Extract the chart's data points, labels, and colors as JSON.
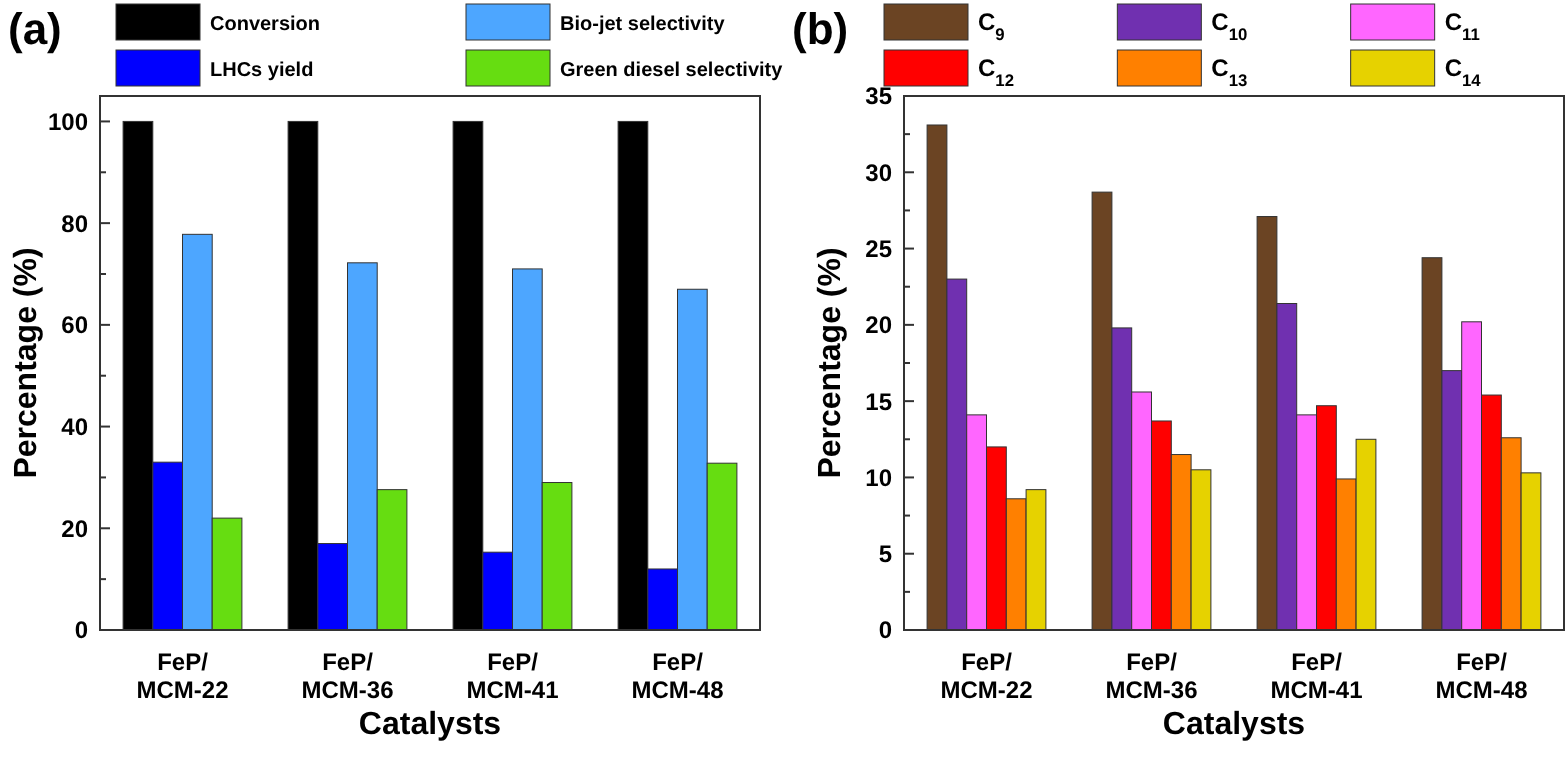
{
  "chart_data": [
    {
      "type": "bar",
      "title": "(a)",
      "xlabel": "Catalysts",
      "ylabel": "Percentage (%)",
      "categories": [
        "FeP/\nMCM-22",
        "FeP/\nMCM-36",
        "FeP/\nMCM-41",
        "FeP/\nMCM-48"
      ],
      "legend": "top",
      "ylim": [
        0,
        105
      ],
      "yticks": [
        0,
        {
          "value": 10,
          "label": null
        },
        20,
        {
          "value": 30,
          "label": null
        },
        40,
        {
          "value": 50,
          "label": null
        },
        60,
        {
          "value": 70,
          "label": null
        },
        80,
        {
          "value": 90,
          "label": null
        },
        100
      ],
      "series": [
        {
          "name": "Conversion",
          "color": "#000000",
          "values": [
            100,
            100,
            100,
            100
          ]
        },
        {
          "name": "LHCs yield",
          "color": "#0000ff",
          "values": [
            33,
            17,
            15.3,
            12
          ]
        },
        {
          "name": "Bio-jet selectivity",
          "color": "#4da6ff",
          "values": [
            77.8,
            72.2,
            71,
            67
          ]
        },
        {
          "name": "Green diesel selectivity",
          "color": "#66dd11",
          "values": [
            22,
            27.6,
            29,
            32.8
          ]
        }
      ]
    },
    {
      "type": "bar",
      "title": "(b)",
      "xlabel": "Catalysts",
      "ylabel": "Percentage (%)",
      "categories": [
        "FeP/\nMCM-22",
        "FeP/\nMCM-36",
        "FeP/\nMCM-41",
        "FeP/\nMCM-48"
      ],
      "legend": "top",
      "ylim": [
        0,
        35
      ],
      "yticks": [
        0,
        {
          "value": 2.5,
          "label": null
        },
        5,
        {
          "value": 7.5,
          "label": null
        },
        10,
        {
          "value": 12.5,
          "label": null
        },
        15,
        {
          "value": 17.5,
          "label": null
        },
        20,
        {
          "value": 22.5,
          "label": null
        },
        25,
        {
          "value": 27.5,
          "label": null
        },
        30,
        {
          "value": 32.5,
          "label": null
        },
        35
      ],
      "series": [
        {
          "name": "C$_{9}$",
          "color": "#6b4423",
          "values": [
            33.1,
            28.7,
            27.1,
            24.4
          ]
        },
        {
          "name": "C$_{10}$",
          "color": "#7030b0",
          "values": [
            23,
            19.8,
            21.4,
            17
          ]
        },
        {
          "name": "C$_{11}$",
          "color": "#ff66ff",
          "values": [
            14.1,
            15.6,
            14.1,
            20.2
          ]
        },
        {
          "name": "C$_{12}$",
          "color": "#ff0000",
          "values": [
            12,
            13.7,
            14.7,
            15.4
          ]
        },
        {
          "name": "C$_{13}$",
          "color": "#ff8000",
          "values": [
            8.6,
            11.5,
            9.9,
            12.6
          ]
        },
        {
          "name": "C$_{14}$",
          "color": "#e6d200",
          "values": [
            9.2,
            10.5,
            12.5,
            10.3
          ]
        }
      ]
    }
  ]
}
